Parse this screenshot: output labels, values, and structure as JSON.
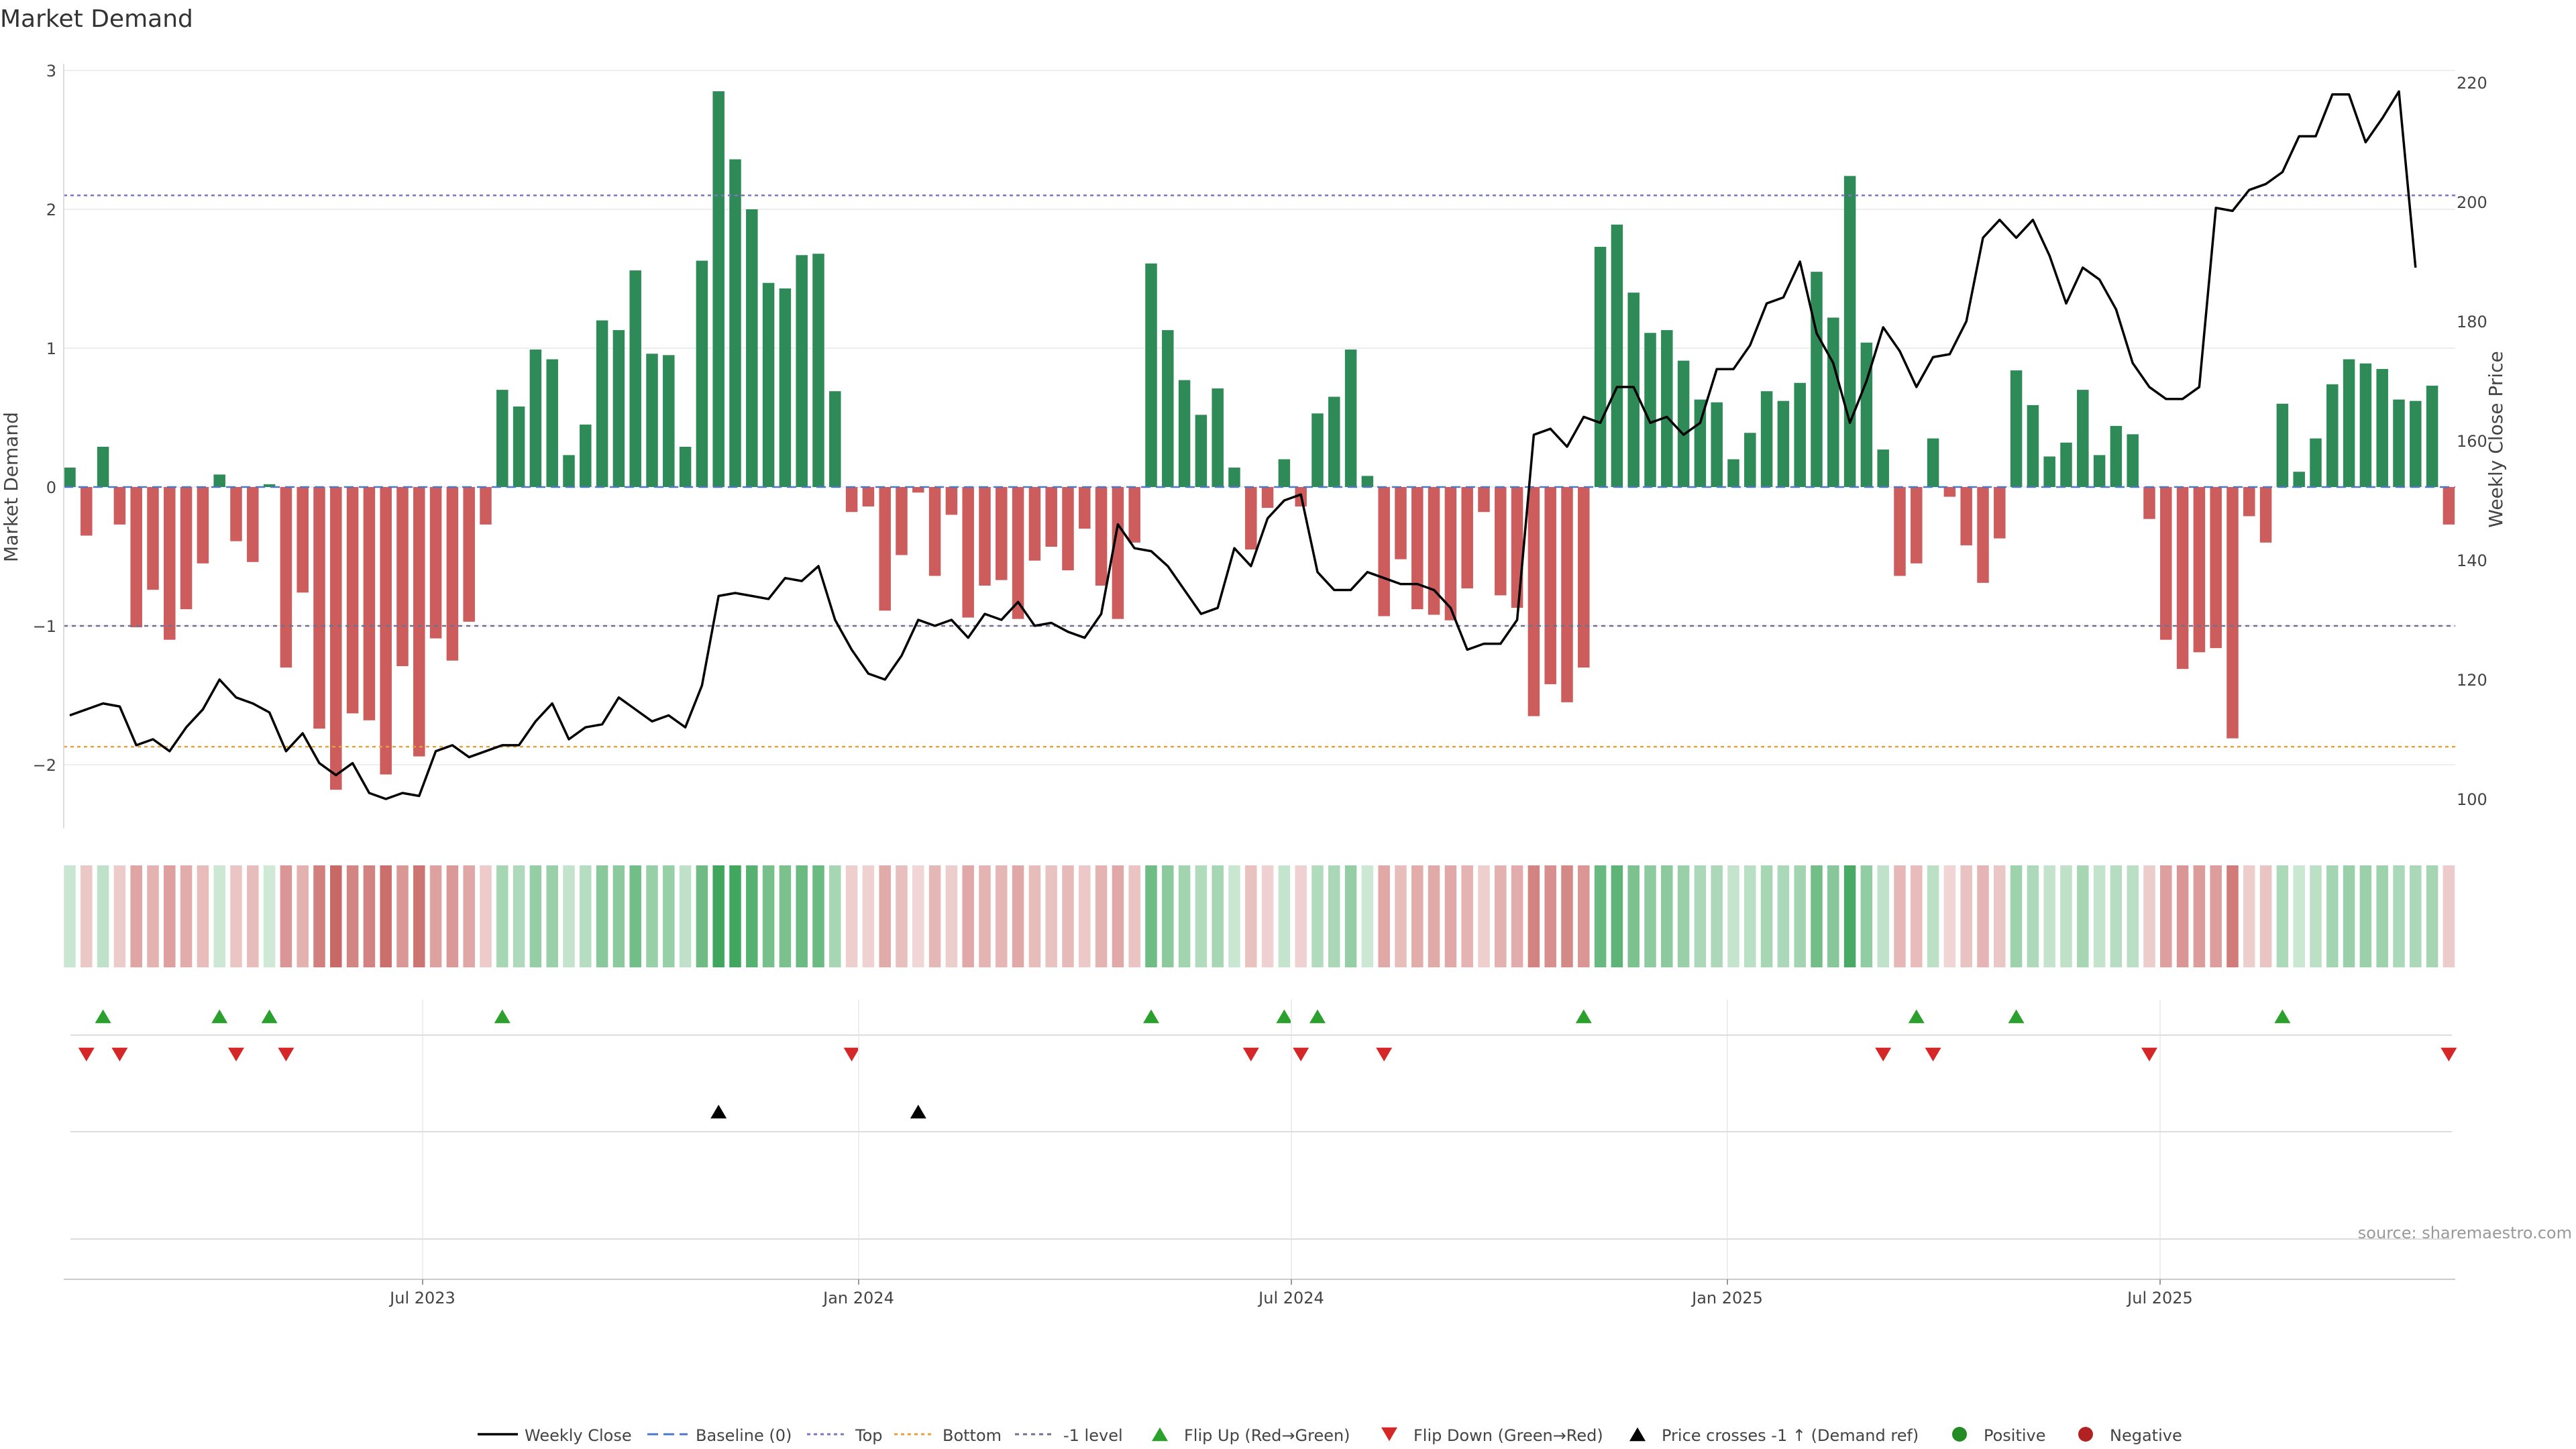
{
  "chart_data": {
    "type": "bar",
    "title": "Market Demand",
    "ylabel": "Market Demand",
    "y2label": "Weekly Close Price",
    "ylim": [
      -2.5,
      3
    ],
    "y2lim": [
      96,
      222
    ],
    "yticks": [
      "3",
      "2",
      "1",
      "0",
      "−1",
      "−2"
    ],
    "y2ticks": [
      "220",
      "200",
      "180",
      "160",
      "140",
      "120",
      "100"
    ],
    "xticks": [
      "Jul 2023",
      "Jan 2024",
      "Jul 2024",
      "Jan 2025",
      "Jul 2025"
    ],
    "reference_lines": {
      "baseline": 0,
      "top": 2.1,
      "bottom": -1.87,
      "minus_one": -1
    },
    "demand": [
      0.14,
      -0.35,
      0.29,
      -0.27,
      -1.01,
      -0.74,
      -1.1,
      -0.88,
      -0.55,
      0.09,
      -0.39,
      -0.54,
      0.02,
      -1.3,
      -0.76,
      -1.74,
      -2.18,
      -1.63,
      -1.68,
      -2.07,
      -1.29,
      -1.94,
      -1.09,
      -1.25,
      -0.97,
      -0.27,
      0.7,
      0.58,
      0.99,
      0.92,
      0.23,
      0.45,
      1.2,
      1.13,
      1.56,
      0.96,
      0.95,
      0.29,
      1.63,
      2.85,
      2.36,
      2.0,
      1.47,
      1.43,
      1.67,
      1.68,
      0.69,
      -0.18,
      -0.14,
      -0.89,
      -0.49,
      -0.04,
      -0.64,
      -0.2,
      -0.94,
      -0.71,
      -0.67,
      -0.95,
      -0.53,
      -0.43,
      -0.6,
      -0.3,
      -0.71,
      -0.95,
      -0.4,
      1.61,
      1.13,
      0.77,
      0.52,
      0.71,
      0.14,
      -0.45,
      -0.15,
      0.2,
      -0.14,
      0.53,
      0.65,
      0.99,
      0.08,
      -0.93,
      -0.52,
      -0.88,
      -0.92,
      -0.96,
      -0.73,
      -0.18,
      -0.78,
      -0.87,
      -1.65,
      -1.42,
      -1.55,
      -1.3,
      1.73,
      1.89,
      1.4,
      1.11,
      1.13,
      0.91,
      0.63,
      0.61,
      0.2,
      0.39,
      0.69,
      0.62,
      0.75,
      1.55,
      1.22,
      2.24,
      1.04,
      0.27,
      -0.64,
      -0.55,
      0.35,
      -0.07,
      -0.42,
      -0.69,
      -0.37,
      0.84,
      0.59,
      0.22,
      0.32,
      0.7,
      0.23,
      0.44,
      0.38,
      -0.23,
      -1.1,
      -1.31,
      -1.19,
      -1.16,
      -1.81,
      -0.21,
      -0.4,
      0.6,
      0.11,
      0.35,
      0.74,
      0.92,
      0.89,
      0.85,
      0.63,
      0.62,
      0.73,
      -0.27
    ],
    "price": [
      114,
      115,
      116,
      115.5,
      109,
      110,
      108,
      112,
      115,
      120,
      117,
      116,
      114.5,
      108,
      111,
      106,
      104,
      106,
      101,
      100,
      101,
      100.5,
      108,
      109,
      107,
      108,
      109,
      109,
      113,
      116,
      110,
      112,
      112.5,
      117,
      115,
      113,
      114,
      112,
      119,
      134,
      134.5,
      134,
      133.5,
      137,
      136.5,
      139,
      130,
      125,
      121,
      120,
      124,
      130,
      129,
      130,
      127,
      131,
      130,
      133,
      129,
      129.5,
      128,
      127,
      131,
      146,
      142,
      141.5,
      139,
      135,
      131,
      132,
      142,
      139,
      147,
      150,
      151,
      138,
      135,
      135,
      138,
      137,
      136,
      136,
      135,
      132,
      125,
      126,
      126,
      130,
      161,
      162,
      159,
      164,
      163,
      169,
      169,
      163,
      164,
      161,
      163,
      172,
      172,
      176,
      183,
      184,
      190,
      178,
      173,
      163,
      170,
      179,
      175,
      169,
      174,
      174.5,
      180,
      194,
      197,
      194,
      197,
      191,
      183,
      189,
      187,
      182,
      173,
      169,
      167,
      167,
      169,
      199,
      198.5,
      202,
      203,
      205,
      211,
      211,
      218,
      218,
      210,
      214,
      218.5,
      189
    ],
    "flip_up_index": [
      2,
      9,
      12,
      26,
      65,
      73,
      75,
      91,
      111,
      117,
      133
    ],
    "flip_down_index": [
      1,
      3,
      10,
      13,
      47,
      71,
      74,
      79,
      109,
      112,
      125,
      143
    ],
    "price_cross_index": [
      39,
      51
    ],
    "legend": [
      "Weekly Close",
      "Baseline (0)",
      "Top",
      "Bottom",
      "-1 level",
      "Flip Up (Red→Green)",
      "Flip Down (Green→Red)",
      "Price crosses -1 ↑ (Demand ref)",
      "Positive",
      "Negative"
    ]
  },
  "source_text": "source: sharemaestro.com",
  "colors": {
    "positive": "#2e8b57",
    "negative": "#cd5c5c",
    "price_line": "#000000",
    "baseline": "#4c78c8",
    "top": "#7878c0",
    "bottom": "#e5a040",
    "minus_one": "#707090",
    "flip_up": "#2ca02c",
    "flip_down": "#d62728",
    "cross": "#000000",
    "legend_positive": "#228b22",
    "legend_negative": "#b22222"
  }
}
